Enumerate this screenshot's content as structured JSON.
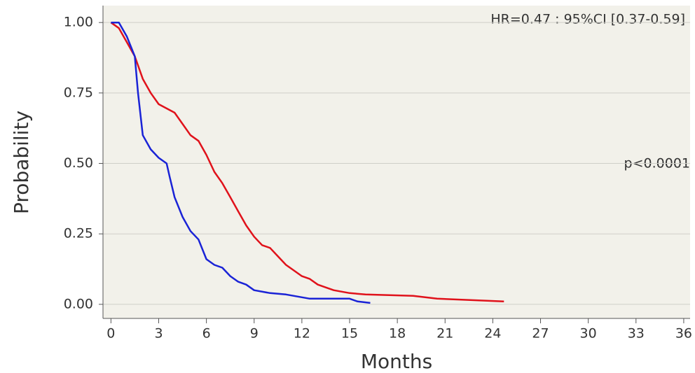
{
  "chart_data": {
    "type": "line",
    "annotations": [
      "HR=0.47 : 95%CI [0.37-0.59]",
      "p<0.0001"
    ],
    "x_label": "Months",
    "y_label": "Probability",
    "xlim": [
      -0.5,
      36.4
    ],
    "ylim": [
      -0.05,
      1.06
    ],
    "xticks": [
      0,
      3,
      6,
      9,
      12,
      15,
      18,
      21,
      24,
      27,
      30,
      33,
      36
    ],
    "yticks": [
      {
        "value": 0,
        "label": "0.00"
      },
      {
        "value": 0.25,
        "label": "0.25"
      },
      {
        "value": 0.5,
        "label": "0.50"
      },
      {
        "value": 0.75,
        "label": "0.75"
      },
      {
        "value": 1,
        "label": "1.00"
      }
    ],
    "grid": true,
    "series": [
      {
        "color": "#e0121b",
        "x": [
          0,
          0.5,
          1,
          1.5,
          2,
          2.5,
          3,
          4,
          4.5,
          5,
          5.5,
          6,
          6.5,
          7,
          7.5,
          8,
          8.5,
          9,
          9.5,
          10,
          10.5,
          11,
          11.5,
          12,
          12.5,
          13,
          13.5,
          14,
          15,
          16,
          19,
          20.5,
          24.7
        ],
        "values": [
          1.0,
          0.98,
          0.93,
          0.88,
          0.8,
          0.75,
          0.71,
          0.68,
          0.64,
          0.6,
          0.58,
          0.53,
          0.47,
          0.43,
          0.38,
          0.33,
          0.28,
          0.24,
          0.21,
          0.2,
          0.17,
          0.14,
          0.12,
          0.1,
          0.09,
          0.07,
          0.06,
          0.05,
          0.04,
          0.035,
          0.03,
          0.02,
          0.01
        ]
      },
      {
        "color": "#1a23d6",
        "x": [
          0,
          0.5,
          1,
          1.5,
          1.7,
          2,
          2.5,
          3,
          3.5,
          3.7,
          4,
          4.5,
          5,
          5.5,
          6,
          6.5,
          7,
          7.5,
          8,
          8.5,
          9,
          10,
          11,
          12.5,
          15,
          15.5,
          16.3
        ],
        "values": [
          1.0,
          1.0,
          0.95,
          0.88,
          0.75,
          0.6,
          0.55,
          0.52,
          0.5,
          0.45,
          0.38,
          0.31,
          0.26,
          0.23,
          0.16,
          0.14,
          0.13,
          0.1,
          0.08,
          0.07,
          0.05,
          0.04,
          0.035,
          0.02,
          0.02,
          0.01,
          0.005
        ]
      }
    ]
  }
}
